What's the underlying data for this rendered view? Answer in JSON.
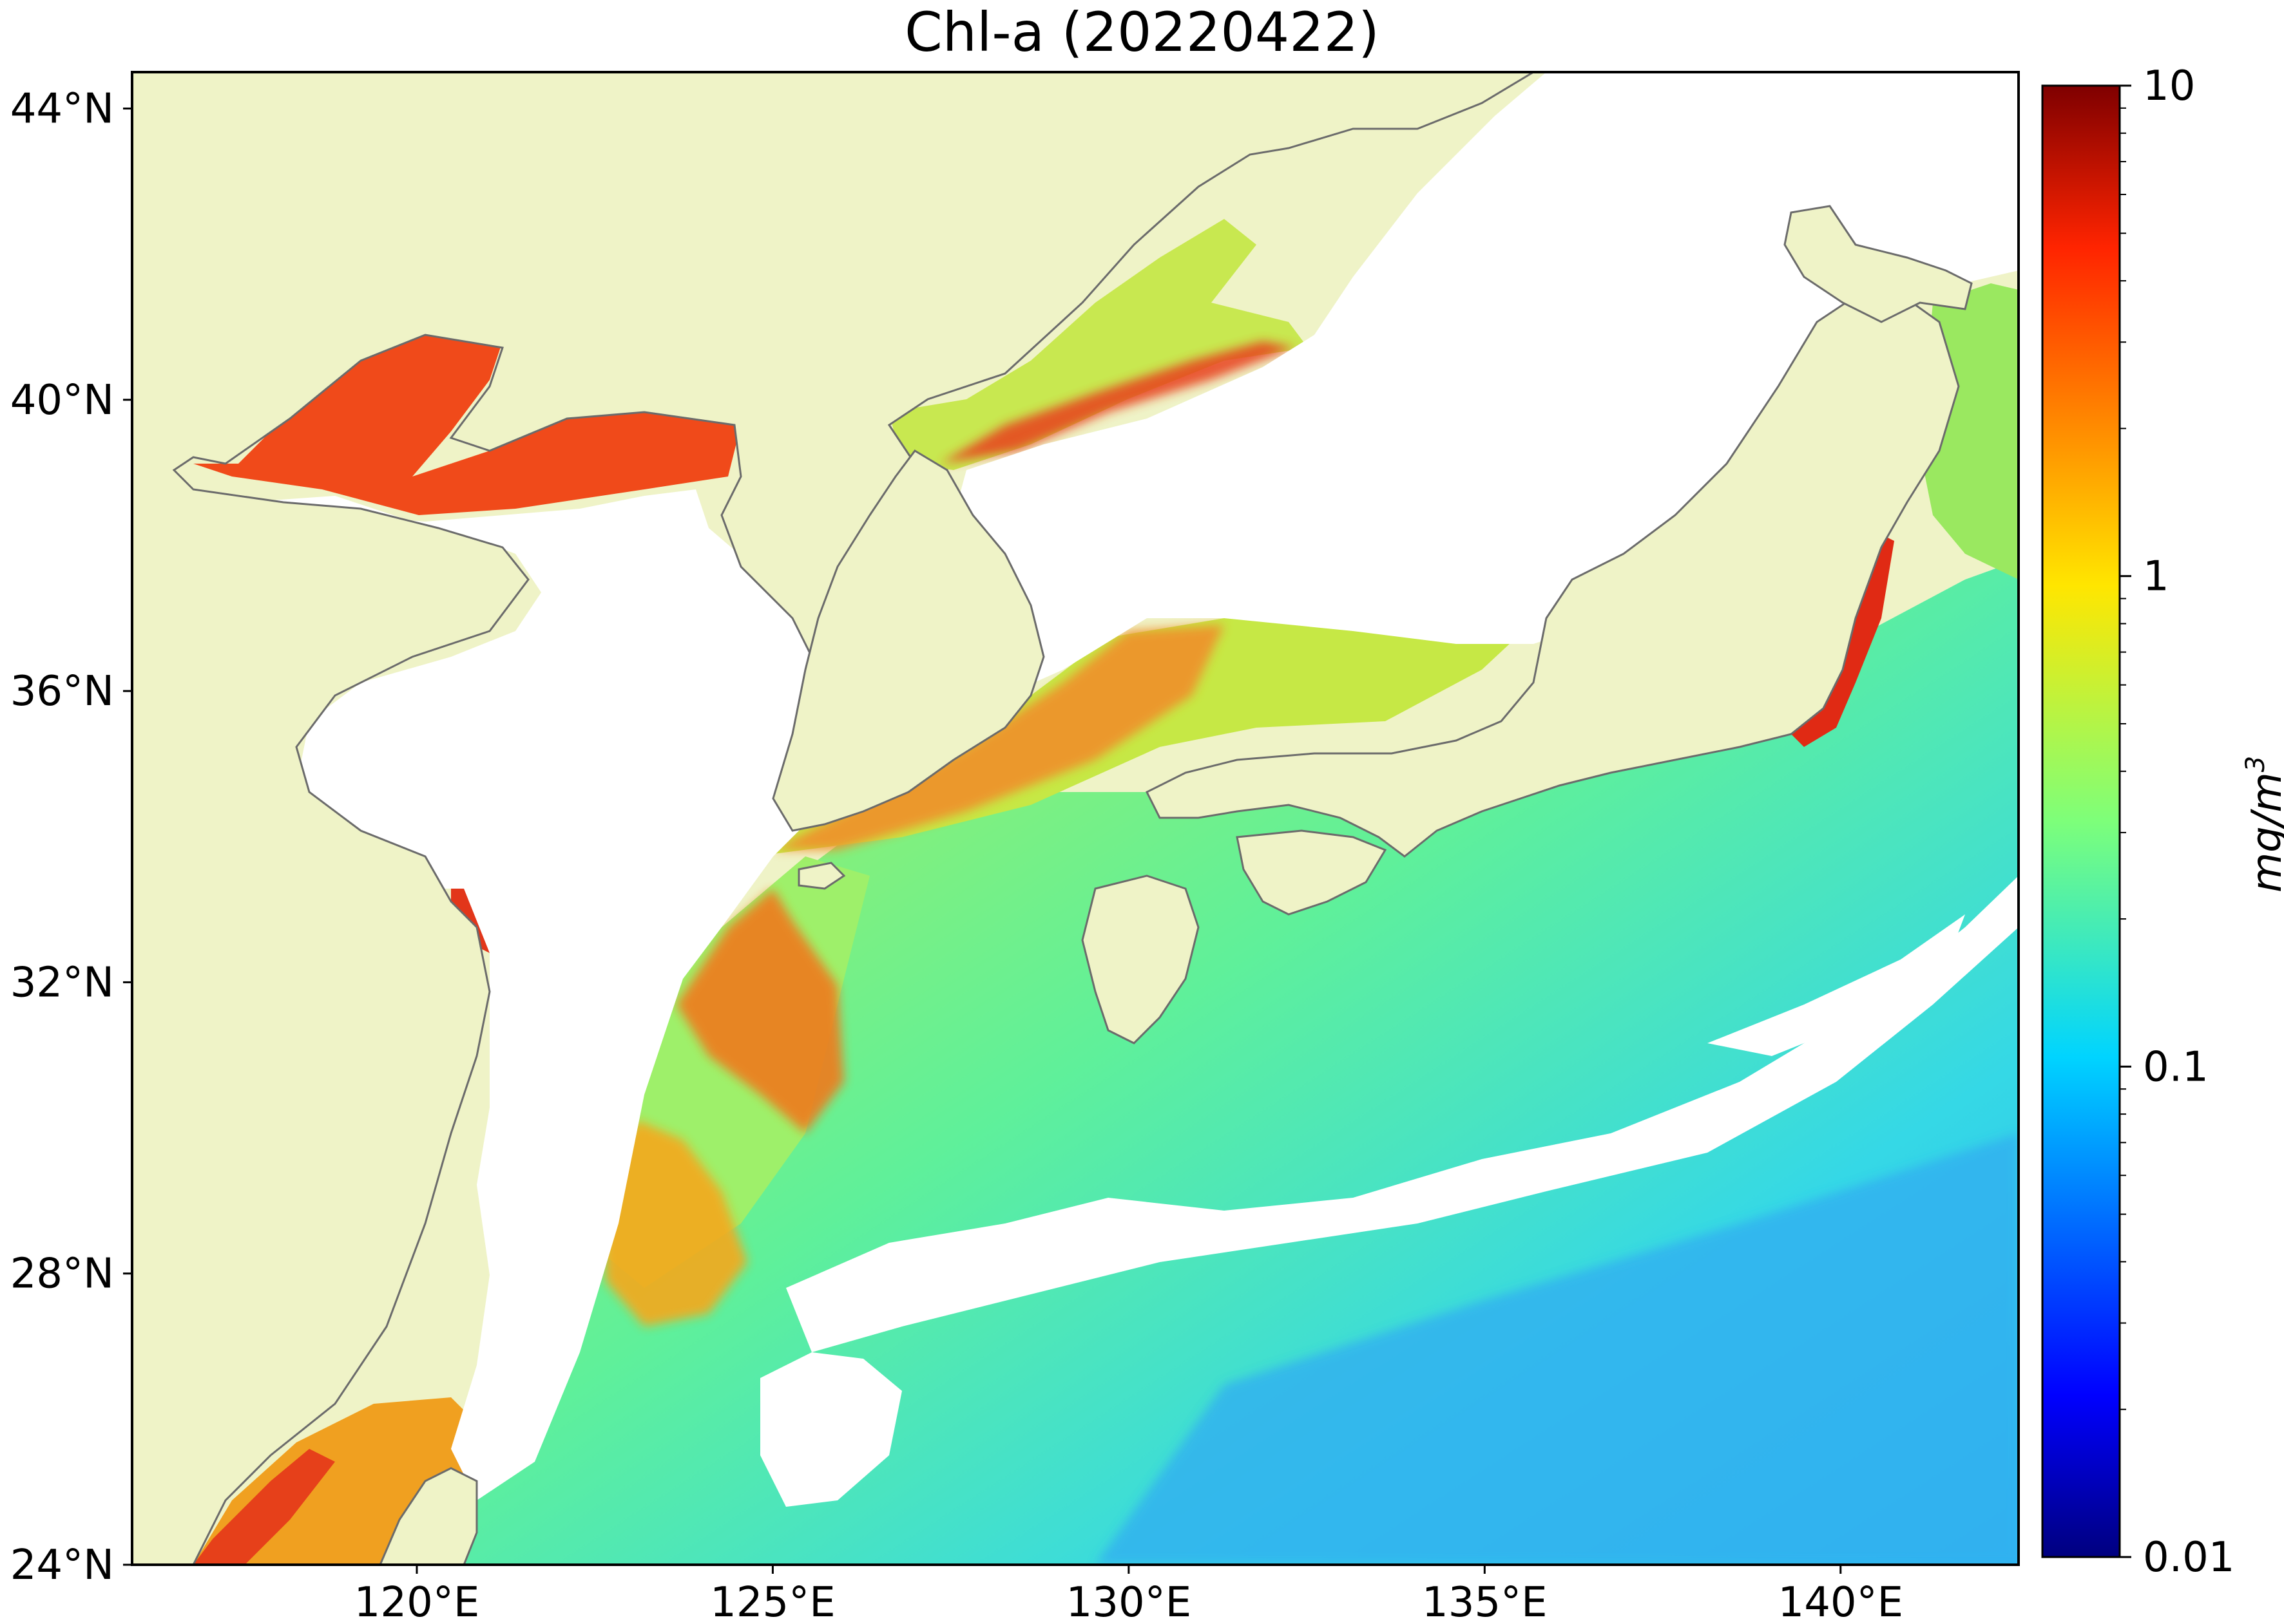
{
  "title": "Chl-a (20220422)",
  "map": {
    "lon_range": [
      116.0,
      142.5
    ],
    "lat_range": [
      24.0,
      44.5
    ],
    "lon_ticks": [
      {
        "value": 120,
        "label": "120°E"
      },
      {
        "value": 125,
        "label": "125°E"
      },
      {
        "value": 130,
        "label": "130°E"
      },
      {
        "value": 135,
        "label": "135°E"
      },
      {
        "value": 140,
        "label": "140°E"
      }
    ],
    "lat_ticks": [
      {
        "value": 44,
        "label": "44°N"
      },
      {
        "value": 40,
        "label": "40°N"
      },
      {
        "value": 36,
        "label": "36°N"
      },
      {
        "value": 32,
        "label": "32°N"
      },
      {
        "value": 28,
        "label": "28°N"
      },
      {
        "value": 24,
        "label": "24°N"
      }
    ],
    "land_color": "#eff3c7",
    "cloud_color": "#ffffff",
    "coastline_color": "#6b6b6b"
  },
  "colorbar": {
    "label": "mg/m3",
    "label_text": "mg/m",
    "label_sup": "3",
    "scale": "log",
    "range": [
      0.01,
      10
    ],
    "ticks": [
      {
        "value": 10,
        "label": "10"
      },
      {
        "value": 1,
        "label": "1"
      },
      {
        "value": 0.1,
        "label": "0.1"
      },
      {
        "value": 0.01,
        "label": "0.01"
      }
    ],
    "colormap": "jet"
  }
}
